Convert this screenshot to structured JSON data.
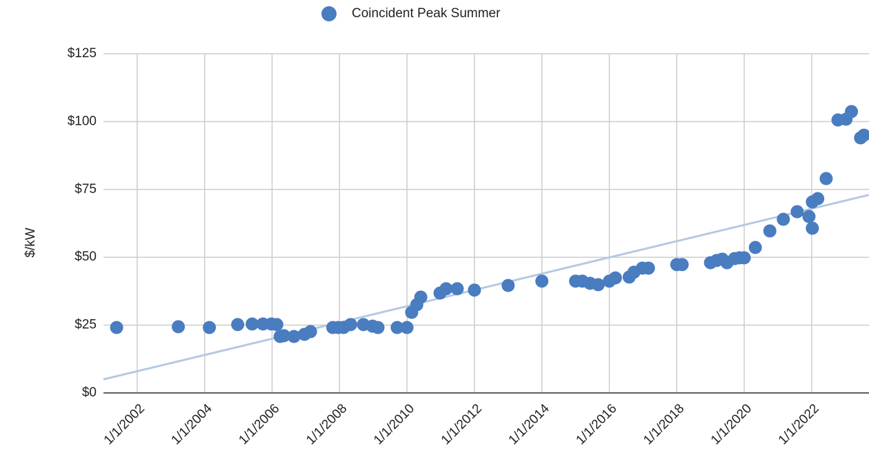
{
  "chart_data": {
    "type": "scatter",
    "y_label": "$/kW",
    "series": [
      {
        "name": "Coincident Peak Summer",
        "color": "#4a7cc0",
        "x": [
          2001.39,
          2003.22,
          2004.14,
          2004.98,
          2005.41,
          2005.73,
          2005.98,
          2006.14,
          2006.24,
          2006.35,
          2006.65,
          2006.96,
          2007.14,
          2007.8,
          2007.96,
          2008.12,
          2008.33,
          2008.71,
          2008.98,
          2009.14,
          2009.71,
          2010.0,
          2010.14,
          2010.29,
          2010.41,
          2010.98,
          2011.16,
          2011.49,
          2012.0,
          2013.0,
          2014.0,
          2015.0,
          2015.2,
          2015.43,
          2015.67,
          2016.0,
          2016.18,
          2016.59,
          2016.73,
          2016.98,
          2017.16,
          2018.0,
          2018.16,
          2019.0,
          2019.18,
          2019.35,
          2019.49,
          2019.71,
          2019.86,
          2020.0,
          2020.33,
          2020.76,
          2021.16,
          2021.57,
          2021.92,
          2022.02,
          2022.02,
          2022.18,
          2022.43,
          2022.78,
          2023.02,
          2023.18,
          2023.45,
          2023.55
        ],
        "values": [
          24.1,
          24.4,
          24.1,
          25.2,
          25.4,
          25.4,
          25.4,
          25.2,
          20.8,
          21.1,
          20.8,
          21.6,
          22.6,
          24.1,
          24.1,
          24.1,
          25.2,
          25.2,
          24.6,
          24.1,
          24.1,
          24.1,
          29.7,
          32.5,
          35.3,
          36.8,
          38.4,
          38.4,
          37.9,
          39.6,
          41.2,
          41.2,
          41.2,
          40.4,
          39.9,
          41.2,
          42.4,
          42.7,
          44.5,
          46.0,
          46.0,
          47.3,
          47.3,
          48.0,
          48.8,
          49.3,
          48.0,
          49.5,
          49.8,
          49.8,
          53.6,
          59.7,
          64.0,
          66.8,
          65.0,
          70.4,
          60.7,
          71.6,
          79.0,
          100.6,
          100.9,
          103.7,
          94.0,
          95.0
        ]
      }
    ],
    "trendline": {
      "color": "#b3c9e1",
      "x": [
        2001.0,
        2023.7
      ],
      "values": [
        5,
        73
      ]
    },
    "xlim": [
      2001.0,
      2023.7
    ],
    "xticks": [
      {
        "value": 2002,
        "label": "1/1/2002"
      },
      {
        "value": 2004,
        "label": "1/1/2004"
      },
      {
        "value": 2006,
        "label": "1/1/2006"
      },
      {
        "value": 2008,
        "label": "1/1/2008"
      },
      {
        "value": 2010,
        "label": "1/1/2010"
      },
      {
        "value": 2012,
        "label": "1/1/2012"
      },
      {
        "value": 2014,
        "label": "1/1/2014"
      },
      {
        "value": 2016,
        "label": "1/1/2016"
      },
      {
        "value": 2018,
        "label": "1/1/2018"
      },
      {
        "value": 2020,
        "label": "1/1/2020"
      },
      {
        "value": 2022,
        "label": "1/1/2022"
      }
    ],
    "ylim": [
      0,
      125
    ],
    "yticks": [
      {
        "value": 0,
        "label": "$0"
      },
      {
        "value": 25,
        "label": "$25"
      },
      {
        "value": 50,
        "label": "$50"
      },
      {
        "value": 75,
        "label": "$75"
      },
      {
        "value": 100,
        "label": "$100"
      },
      {
        "value": 125,
        "label": "$125"
      }
    ],
    "grid": true,
    "legend": "top"
  }
}
